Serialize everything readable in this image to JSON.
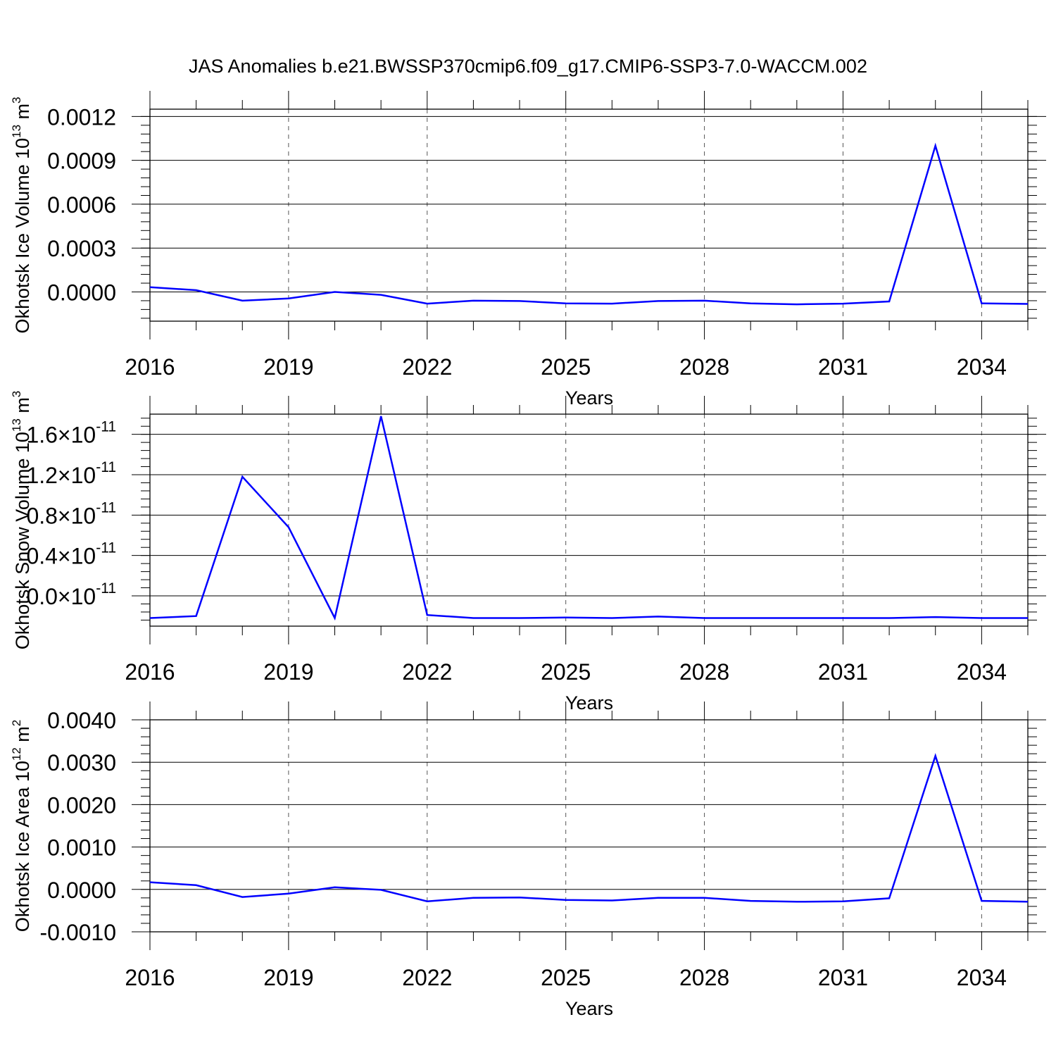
{
  "title": "JAS Anomalies b.e21.BWSSP370cmip6.f09_g17.CMIP6-SSP3-7.0-WACCM.002",
  "chart_data": [
    {
      "type": "line",
      "ylabel": {
        "text": "Okhotsk Ice Volume 10",
        "sup": "13",
        "unit": " m",
        "unit_sup": "3"
      },
      "xlabel": "Years",
      "x": [
        2016,
        2017,
        2018,
        2019,
        2020,
        2021,
        2022,
        2023,
        2024,
        2025,
        2026,
        2027,
        2028,
        2029,
        2030,
        2031,
        2032,
        2033,
        2034,
        2035
      ],
      "values": [
        3.2e-05,
        1.2e-05,
        -6e-05,
        -4.5e-05,
        0.0,
        -2e-05,
        -8e-05,
        -6e-05,
        -6.2e-05,
        -7.8e-05,
        -8e-05,
        -6.2e-05,
        -6e-05,
        -7.8e-05,
        -8.5e-05,
        -8e-05,
        -6.5e-05,
        0.001,
        -7.8e-05,
        -8.2e-05
      ],
      "xlim": [
        2016,
        2035
      ],
      "ylim": [
        -0.0002,
        0.00125
      ],
      "yticks": [
        0.0,
        0.0003,
        0.0006,
        0.0009,
        0.0012
      ],
      "ytick_labels": [
        "0.0000",
        "0.0003",
        "0.0006",
        "0.0009",
        "0.0012"
      ],
      "xticks": [
        2016,
        2019,
        2022,
        2025,
        2028,
        2031,
        2034
      ],
      "xtick_labels": [
        "2016",
        "2019",
        "2022",
        "2025",
        "2028",
        "2031",
        "2034"
      ],
      "grid": "vertical-dashed",
      "color": "#0000ff"
    },
    {
      "type": "line",
      "ylabel": {
        "text": "Okhotsk Snow Volume 10",
        "sup": "13",
        "unit": " m",
        "unit_sup": "3"
      },
      "xlabel": "Years",
      "x": [
        2016,
        2017,
        2018,
        2019,
        2020,
        2021,
        2022,
        2023,
        2024,
        2025,
        2026,
        2027,
        2028,
        2029,
        2030,
        2031,
        2032,
        2033,
        2034,
        2035
      ],
      "values": [
        -2.2e-12,
        -2e-12,
        1.18e-11,
        6.8e-12,
        -2.2e-12,
        1.78e-11,
        -1.9e-12,
        -2.2e-12,
        -2.2e-12,
        -2.15e-12,
        -2.2e-12,
        -2.05e-12,
        -2.2e-12,
        -2.2e-12,
        -2.2e-12,
        -2.2e-12,
        -2.2e-12,
        -2.1e-12,
        -2.2e-12,
        -2.2e-12
      ],
      "xlim": [
        2016,
        2035
      ],
      "ylim": [
        -3e-12,
        1.8e-11
      ],
      "yticks": [
        0.0,
        4e-12,
        8e-12,
        1.2e-11,
        1.6e-11
      ],
      "ytick_labels": [
        {
          "mant": "0.0",
          "exp": "-11"
        },
        {
          "mant": "0.4",
          "exp": "-11"
        },
        {
          "mant": "0.8",
          "exp": "-11"
        },
        {
          "mant": "1.2",
          "exp": "-11"
        },
        {
          "mant": "1.6",
          "exp": "-11"
        }
      ],
      "xticks": [
        2016,
        2019,
        2022,
        2025,
        2028,
        2031,
        2034
      ],
      "xtick_labels": [
        "2016",
        "2019",
        "2022",
        "2025",
        "2028",
        "2031",
        "2034"
      ],
      "grid": "vertical-dashed",
      "color": "#0000ff"
    },
    {
      "type": "line",
      "ylabel": {
        "text": "Okhotsk Ice Area 10",
        "sup": "12",
        "unit": " m",
        "unit_sup": "2"
      },
      "xlabel": "Years",
      "x": [
        2016,
        2017,
        2018,
        2019,
        2020,
        2021,
        2022,
        2023,
        2024,
        2025,
        2026,
        2027,
        2028,
        2029,
        2030,
        2031,
        2032,
        2033,
        2034,
        2035
      ],
      "values": [
        0.00017,
        0.0001,
        -0.00018,
        -0.0001,
        5e-05,
        -1e-05,
        -0.00028,
        -0.0002,
        -0.00019,
        -0.00025,
        -0.00026,
        -0.0002,
        -0.0002,
        -0.00027,
        -0.00029,
        -0.00028,
        -0.00021,
        0.00315,
        -0.00027,
        -0.00029
      ],
      "xlim": [
        2016,
        2035
      ],
      "ylim": [
        -0.001,
        0.004
      ],
      "yticks": [
        -0.001,
        0.0,
        0.001,
        0.002,
        0.003,
        0.004
      ],
      "ytick_labels": [
        "-0.0010",
        "0.0000",
        "0.0010",
        "0.0020",
        "0.0030",
        "0.0040"
      ],
      "xticks": [
        2016,
        2019,
        2022,
        2025,
        2028,
        2031,
        2034
      ],
      "xtick_labels": [
        "2016",
        "2019",
        "2022",
        "2025",
        "2028",
        "2031",
        "2034"
      ],
      "grid": "vertical-dashed",
      "color": "#0000ff"
    }
  ]
}
